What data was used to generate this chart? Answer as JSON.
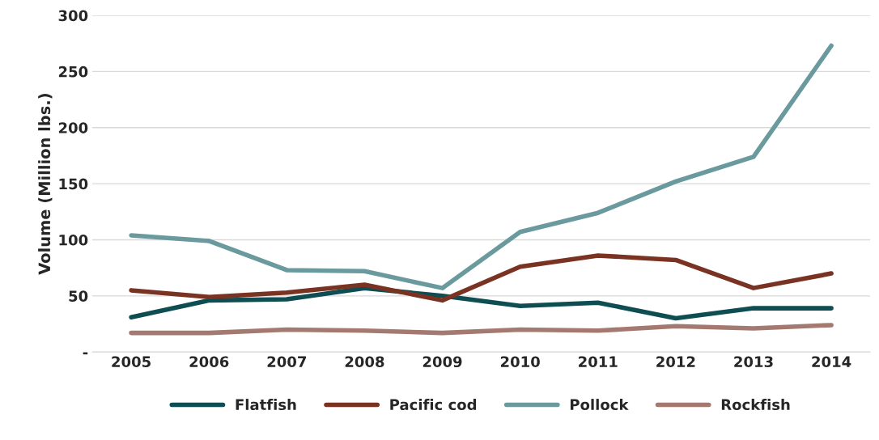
{
  "chart_data": {
    "type": "line",
    "ylabel": "Volume (Million lbs.)",
    "categories": [
      "2005",
      "2006",
      "2007",
      "2008",
      "2009",
      "2010",
      "2011",
      "2012",
      "2013",
      "2014"
    ],
    "series": [
      {
        "name": "Flatfish",
        "color": "#0e4d52",
        "values": [
          31,
          46,
          47,
          57,
          50,
          41,
          44,
          30,
          39,
          39
        ]
      },
      {
        "name": "Pacific cod",
        "color": "#7a3322",
        "values": [
          55,
          49,
          53,
          60,
          46,
          76,
          86,
          82,
          57,
          70
        ]
      },
      {
        "name": "Pollock",
        "color": "#6a9a9e",
        "values": [
          104,
          99,
          73,
          72,
          57,
          107,
          124,
          152,
          174,
          273
        ]
      },
      {
        "name": "Rockfish",
        "color": "#a47a70",
        "values": [
          17,
          17,
          20,
          19,
          17,
          20,
          19,
          23,
          21,
          24
        ]
      }
    ],
    "ylim": [
      0,
      300
    ],
    "yticks": [
      {
        "value": 0,
        "label": "-"
      },
      50,
      100,
      150,
      200,
      250,
      300
    ],
    "grid": "y",
    "legend": "bottom",
    "marker": "none",
    "line_style": "solid"
  }
}
